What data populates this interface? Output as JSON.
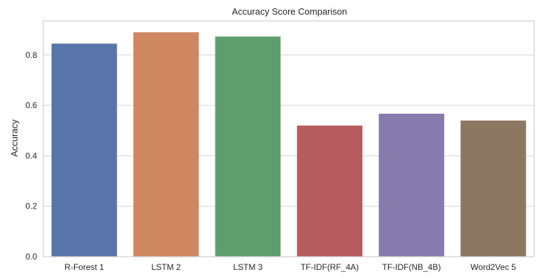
{
  "chart_data": {
    "type": "bar",
    "title": "Accuracy Score Comparison",
    "xlabel": "",
    "ylabel": "Accuracy",
    "categories": [
      "R-Forest 1",
      "LSTM 2",
      "LSTM 3",
      "TF-IDF(RF_4A)",
      "TF-IDF(NB_4B)",
      "Word2Vec 5"
    ],
    "values": [
      0.845,
      0.89,
      0.873,
      0.52,
      0.567,
      0.54
    ],
    "colors": [
      "#5874a8",
      "#cf8762",
      "#5e9e6e",
      "#b65b5e",
      "#877bad",
      "#8c7763"
    ],
    "ylim": [
      0,
      0.935
    ],
    "yticks": [
      0.0,
      0.2,
      0.4,
      0.6,
      0.8
    ],
    "ytick_labels": [
      "0.0",
      "0.2",
      "0.4",
      "0.6",
      "0.8"
    ],
    "grid": true,
    "legend": "none"
  }
}
